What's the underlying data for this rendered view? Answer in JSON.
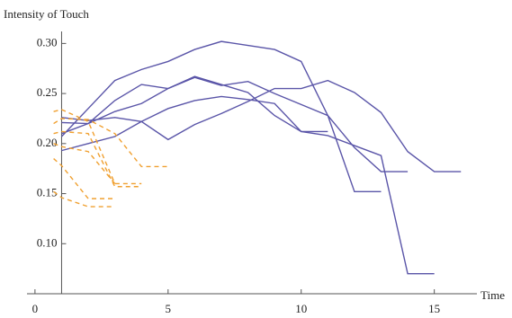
{
  "chart_data": {
    "type": "line",
    "ylabel": "Intensity of Touch",
    "xlabel": "Time",
    "xlim": [
      -0.3,
      16.6
    ],
    "ylim": [
      0.05,
      0.312
    ],
    "xticks": [
      0,
      5,
      10,
      15
    ],
    "yticks": [
      {
        "value": 0.1,
        "label": "0.10"
      },
      0.15,
      {
        "value": 0.2,
        "label": "0.20"
      },
      0.25,
      {
        "value": 0.3,
        "label": "0.30"
      }
    ],
    "y_axis_at": 1,
    "series": [
      {
        "color": "#5a55a8",
        "dash": false,
        "x": [
          1,
          2,
          3,
          4,
          5,
          6,
          7,
          8,
          9,
          10,
          11,
          12,
          13,
          14
        ],
        "values": [
          0.207,
          0.235,
          0.263,
          0.274,
          0.282,
          0.294,
          0.302,
          0.298,
          0.294,
          0.282,
          0.228,
          0.196,
          0.172,
          0.172
        ]
      },
      {
        "color": "#5a55a8",
        "dash": false,
        "x": [
          1,
          2,
          3,
          4,
          5,
          6,
          7,
          8,
          9,
          10,
          11
        ],
        "values": [
          0.193,
          0.2,
          0.207,
          0.222,
          0.235,
          0.243,
          0.247,
          0.244,
          0.24,
          0.212,
          0.212
        ]
      },
      {
        "color": "#5a55a8",
        "dash": false,
        "x": [
          1,
          2,
          3,
          4,
          5,
          6,
          7,
          8,
          9,
          10,
          11,
          12,
          13,
          14,
          15,
          16
        ],
        "values": [
          0.226,
          0.223,
          0.226,
          0.222,
          0.204,
          0.219,
          0.23,
          0.242,
          0.255,
          0.255,
          0.263,
          0.251,
          0.231,
          0.192,
          0.172,
          0.172
        ]
      },
      {
        "color": "#5a55a8",
        "dash": false,
        "x": [
          1,
          2,
          3,
          4,
          5,
          6,
          7,
          8,
          9,
          10,
          11,
          12,
          13
        ],
        "values": [
          0.21,
          0.22,
          0.243,
          0.259,
          0.255,
          0.266,
          0.258,
          0.262,
          0.25,
          0.239,
          0.228,
          0.152,
          0.152
        ]
      },
      {
        "color": "#5a55a8",
        "dash": false,
        "x": [
          1,
          2,
          3,
          4,
          5,
          6,
          7,
          8,
          9,
          10,
          11,
          12,
          13,
          14,
          15
        ],
        "values": [
          0.221,
          0.22,
          0.232,
          0.24,
          0.255,
          0.267,
          0.259,
          0.251,
          0.228,
          0.212,
          0.208,
          0.198,
          0.188,
          0.07,
          0.07
        ]
      },
      {
        "color": "#f0a030",
        "dash": true,
        "x": [
          0.7,
          1,
          2,
          3,
          4
        ],
        "values": [
          0.232,
          0.234,
          0.222,
          0.16,
          0.16
        ]
      },
      {
        "color": "#f0a030",
        "dash": true,
        "x": [
          0.7,
          1,
          2,
          3,
          4
        ],
        "values": [
          0.21,
          0.212,
          0.21,
          0.157,
          0.157
        ]
      },
      {
        "color": "#f0a030",
        "dash": true,
        "x": [
          0.7,
          1,
          2,
          3
        ],
        "values": [
          0.2,
          0.197,
          0.192,
          0.16
        ]
      },
      {
        "color": "#f0a030",
        "dash": true,
        "x": [
          0.7,
          1,
          2,
          3
        ],
        "values": [
          0.185,
          0.178,
          0.145,
          0.145
        ]
      },
      {
        "color": "#f0a030",
        "dash": true,
        "x": [
          0.7,
          1,
          2,
          3
        ],
        "values": [
          0.152,
          0.146,
          0.137,
          0.137
        ]
      },
      {
        "color": "#f0a030",
        "dash": true,
        "x": [
          0.7,
          1,
          2,
          3,
          4,
          5
        ],
        "values": [
          0.22,
          0.225,
          0.224,
          0.21,
          0.177,
          0.177
        ]
      }
    ]
  }
}
